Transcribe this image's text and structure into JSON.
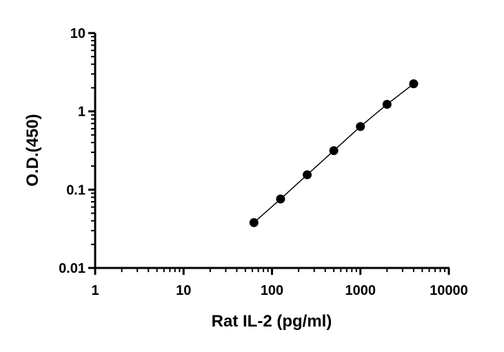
{
  "chart_data": {
    "type": "scatter",
    "xscale": "log",
    "yscale": "log",
    "xlim": [
      1,
      10000
    ],
    "ylim": [
      0.01,
      10
    ],
    "xlabel": "Rat IL-2 (pg/ml)",
    "ylabel": "O.D.(450)",
    "x_ticks": [
      1,
      10,
      100,
      1000,
      10000
    ],
    "x_tick_labels": [
      "1",
      "10",
      "100",
      "1000",
      "10000"
    ],
    "y_ticks": [
      0.01,
      0.1,
      1,
      10
    ],
    "y_tick_labels": [
      "0.01",
      "0.1",
      "1",
      "10"
    ],
    "grid": false,
    "series": [
      {
        "x": [
          62.5,
          125,
          250,
          500,
          1000,
          2000,
          4000
        ],
        "y": [
          0.038,
          0.076,
          0.155,
          0.315,
          0.64,
          1.23,
          2.25
        ],
        "marker": "filled-circle",
        "line": "straight-connecting",
        "color": "#000000"
      }
    ]
  }
}
